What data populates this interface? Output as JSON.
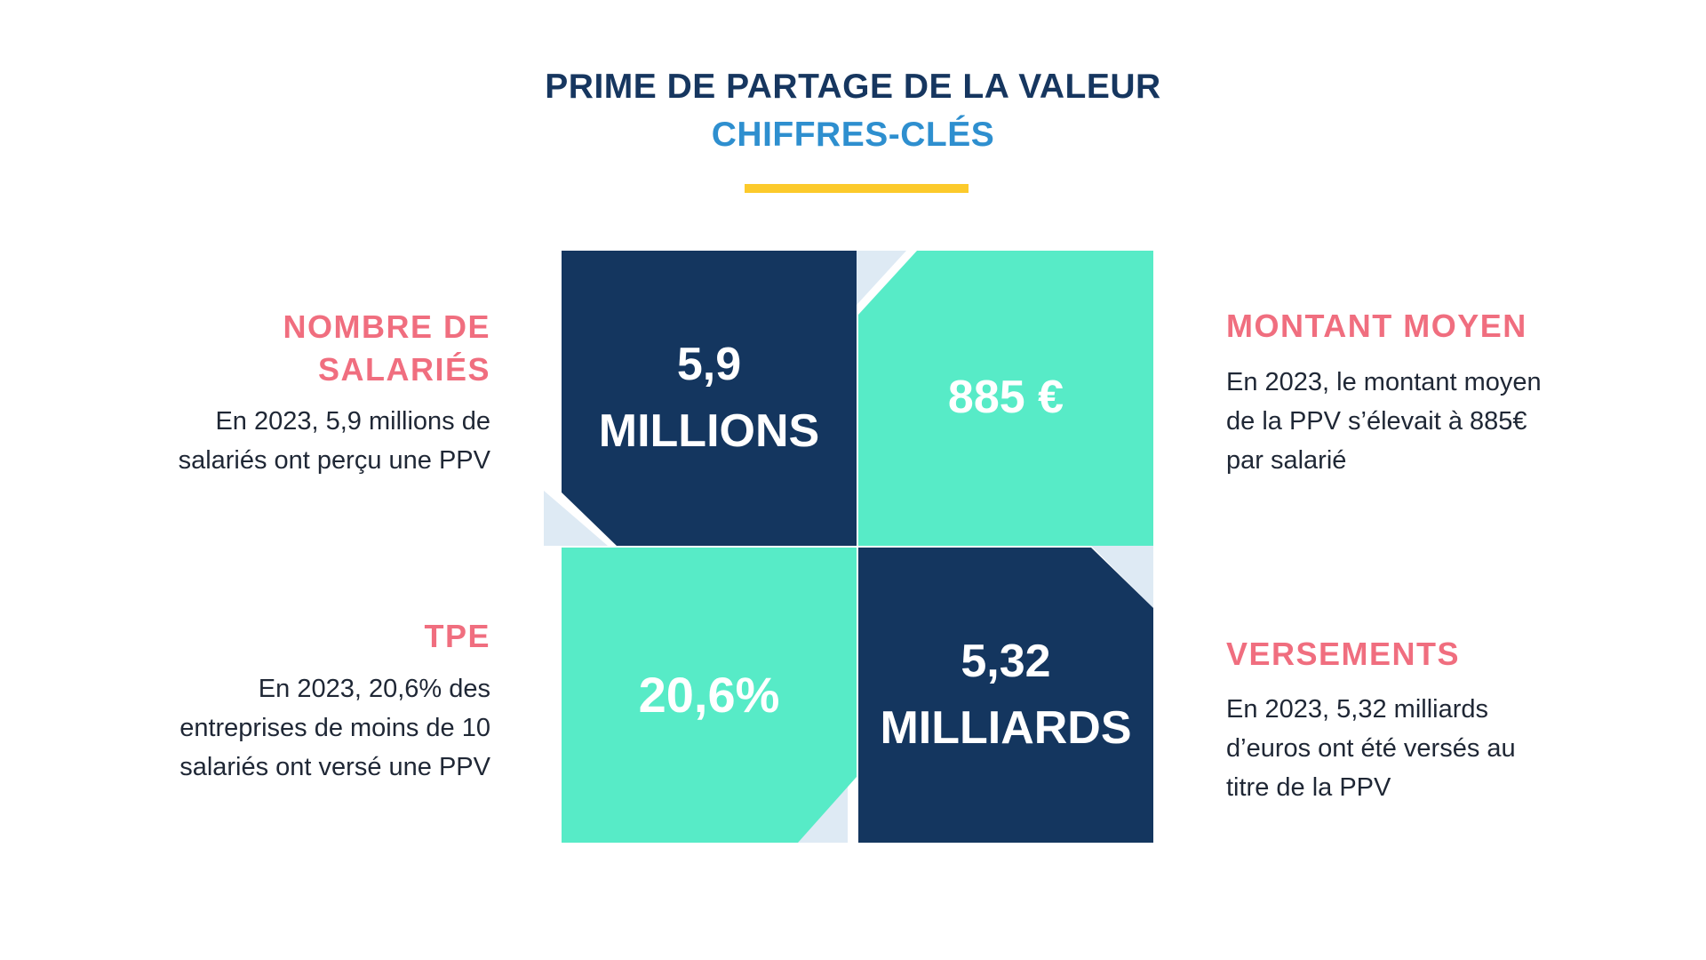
{
  "header": {
    "title": "PRIME DE PARTAGE DE LA VALEUR",
    "subtitle": "CHIFFRES-CLÉS"
  },
  "colors": {
    "navy": "#14365f",
    "title_blue": "#16365f",
    "subtitle_blue": "#2e8fcf",
    "mint": "#57ebc7",
    "coral": "#f06e7f",
    "accent_yellow": "#fcca2b",
    "light_blue": "#deeaf4",
    "body_text": "#1f2735"
  },
  "tiles": {
    "top_left": {
      "line1": "5,9",
      "line2": "MILLIONS"
    },
    "top_right": {
      "value": "885 €"
    },
    "bottom_left": {
      "value": "20,6%"
    },
    "bottom_right": {
      "line1": "5,32",
      "line2": "MILLIARDS"
    }
  },
  "sections": {
    "salaries": {
      "title_line1": "NOMBRE DE",
      "title_line2": "SALARIÉS",
      "text_line1": "En 2023, 5,9 millions de",
      "text_line2": "salariés ont perçu une PPV"
    },
    "montant": {
      "title": "MONTANT MOYEN",
      "text_line1": "En 2023, le montant moyen",
      "text_line2": "de la PPV s’élevait à 885€",
      "text_line3": "par salarié"
    },
    "tpe": {
      "title": "TPE",
      "text_line1": "En 2023, 20,6% des",
      "text_line2": "entreprises de moins de 10",
      "text_line3": "salariés ont versé une PPV"
    },
    "versements": {
      "title": "VERSEMENTS",
      "text_line1": "En 2023, 5,32 milliards",
      "text_line2": "d’euros ont été versés au",
      "text_line3": "titre de la PPV"
    }
  }
}
